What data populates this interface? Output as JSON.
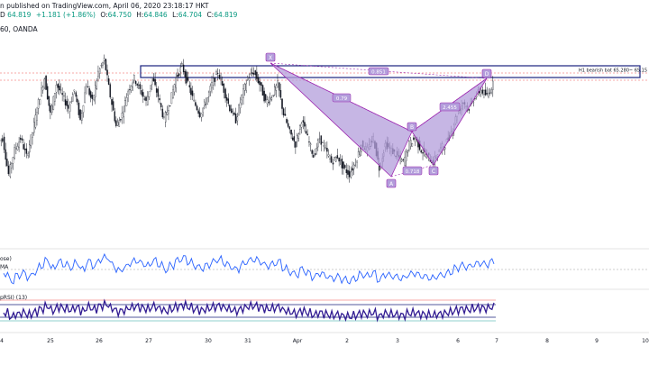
{
  "header": {
    "published_line": "n published on TradingView.com, April 06, 2020 23:18:17 HKT",
    "symbol_prefix": "D",
    "ohlc": {
      "open": "64.819",
      "change": "+1.181 (+1.86%)",
      "o_label": "O:",
      "o_value": "64.750",
      "h_label": "H:",
      "h_value": "64.846",
      "l_label": "L:",
      "l_value": "64.704",
      "c_label": "C:",
      "c_value": "64.819"
    },
    "interval_line": "60, OANDA"
  },
  "pattern": {
    "label_x": "X",
    "label_a": "A",
    "label_b": "B",
    "label_c": "C",
    "label_d": "D",
    "ratio_xb": "0.79",
    "ratio_ac": "0.718",
    "ratio_bd": "2.455",
    "ratio_xd": "0.851",
    "zone_label": "H1 bearish bat 65.280~ 65.15"
  },
  "indicators": {
    "panel1_label": "ose)",
    "panel1_sub": "MA",
    "panel2_label": "pRSI) (13)"
  },
  "x_axis": {
    "ticks": [
      "4",
      "25",
      "26",
      "27",
      "30",
      "31",
      "Apr",
      "2",
      "3",
      "6",
      "7",
      "8",
      "9",
      "10"
    ]
  },
  "colors": {
    "candle": "#131722",
    "pattern_fill": "#b39ddb",
    "pattern_stroke": "#9c27b0",
    "zone_border": "#1a237e",
    "indicator1": "#2962ff",
    "indicator2": "#311b92",
    "level_red": "#ef5350",
    "level_green": "#26a69a",
    "level_blue": "#1a237e"
  },
  "chart_data": {
    "type": "line",
    "series": [
      {
        "values": [
          63.9,
          63.3,
          63.7,
          63.9,
          63.6,
          64.0,
          64.5,
          64.9,
          64.3,
          64.8,
          64.6,
          64.4,
          64.7,
          64.2,
          64.8,
          64.5,
          65.0,
          65.2,
          64.6,
          64.1,
          64.3,
          64.7,
          64.9,
          64.7,
          64.5,
          64.9,
          64.6,
          64.2,
          64.5,
          64.9,
          65.1,
          64.8,
          64.5,
          64.3,
          64.5,
          64.8,
          65.0,
          64.7,
          64.4,
          64.2,
          64.6,
          64.9,
          65.0,
          64.8,
          64.5,
          64.6,
          64.8,
          64.3,
          64.0,
          63.8,
          64.2,
          63.9,
          63.6,
          63.9,
          63.7,
          63.5,
          63.6,
          63.4,
          63.3,
          63.5,
          63.8,
          63.7,
          63.9,
          63.4,
          63.8,
          63.7,
          63.6,
          63.5,
          63.8,
          63.9,
          63.7,
          63.6,
          63.5,
          63.7,
          63.8,
          64.0,
          64.3,
          64.5,
          64.4,
          64.6,
          64.7,
          64.6,
          64.8
        ]
      }
    ]
  }
}
